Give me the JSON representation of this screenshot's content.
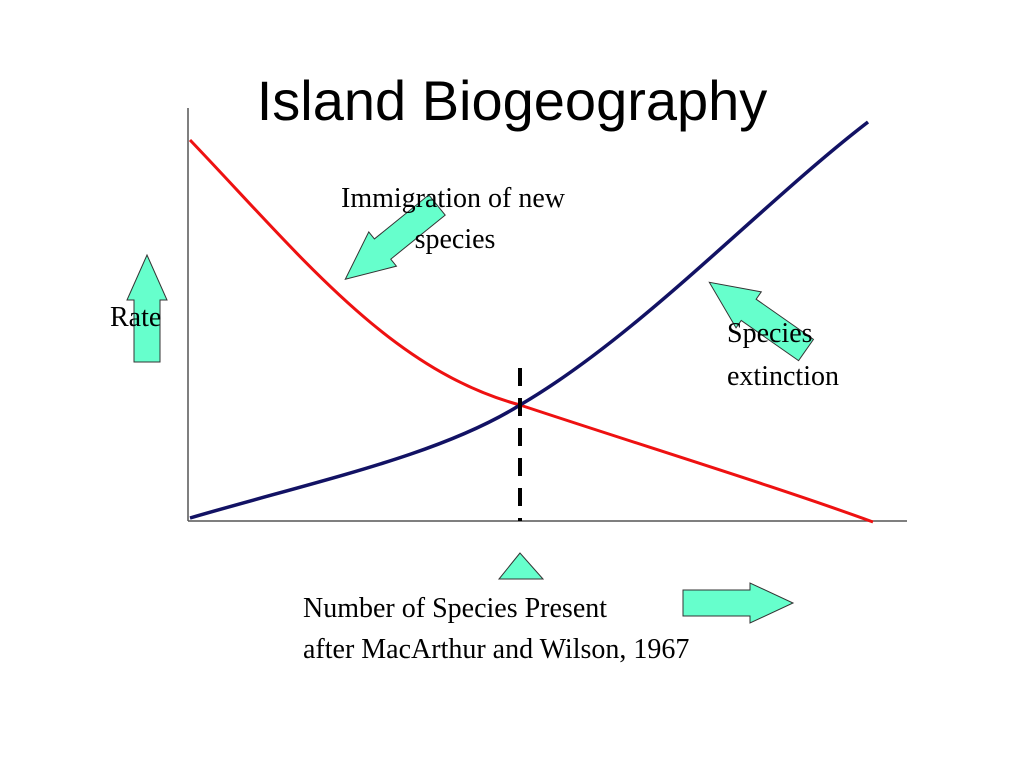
{
  "title": "Island Biogeography",
  "y_label": "Rate",
  "immigration_label": {
    "lines": [
      "Immigration of new",
      "species"
    ]
  },
  "extinction_label": {
    "lines": [
      "Species",
      "extinction"
    ]
  },
  "x_label": {
    "lines": [
      "Number of Species Present",
      "after MacArthur and Wilson, 1967"
    ]
  }
}
